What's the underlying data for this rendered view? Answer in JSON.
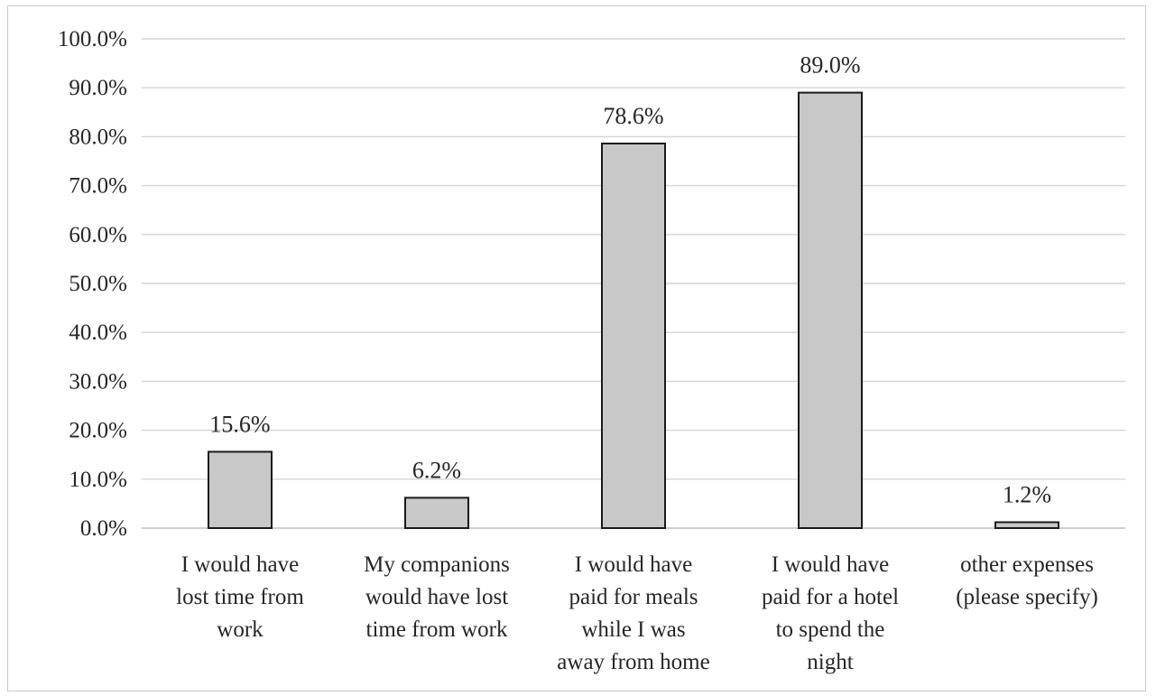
{
  "chart_data": {
    "type": "bar",
    "title": "",
    "xlabel": "",
    "ylabel": "",
    "ylim": [
      0,
      100
    ],
    "yticks": [
      "0.0%",
      "10.0%",
      "20.0%",
      "30.0%",
      "40.0%",
      "50.0%",
      "60.0%",
      "70.0%",
      "80.0%",
      "90.0%",
      "100.0%"
    ],
    "categories": [
      [
        "I would have",
        "lost time from",
        "work"
      ],
      [
        "My companions",
        "would have lost",
        "time from work"
      ],
      [
        "I would have",
        "paid for meals",
        "while I was",
        "away from home"
      ],
      [
        "I would have",
        "paid for a hotel",
        "to spend the",
        "night"
      ],
      [
        "other expenses",
        "(please specify)"
      ]
    ],
    "values": [
      15.6,
      6.2,
      78.6,
      89.0,
      1.2
    ],
    "value_labels": [
      "15.6%",
      "6.2%",
      "78.6%",
      "89.0%",
      "1.2%"
    ],
    "grid": true,
    "legend": "none",
    "colors": {
      "bar_fill": "#c8c8c8",
      "bar_stroke": "#1a1a1a",
      "grid": "#d4d4d4",
      "axis": "#bfbfbf"
    }
  }
}
